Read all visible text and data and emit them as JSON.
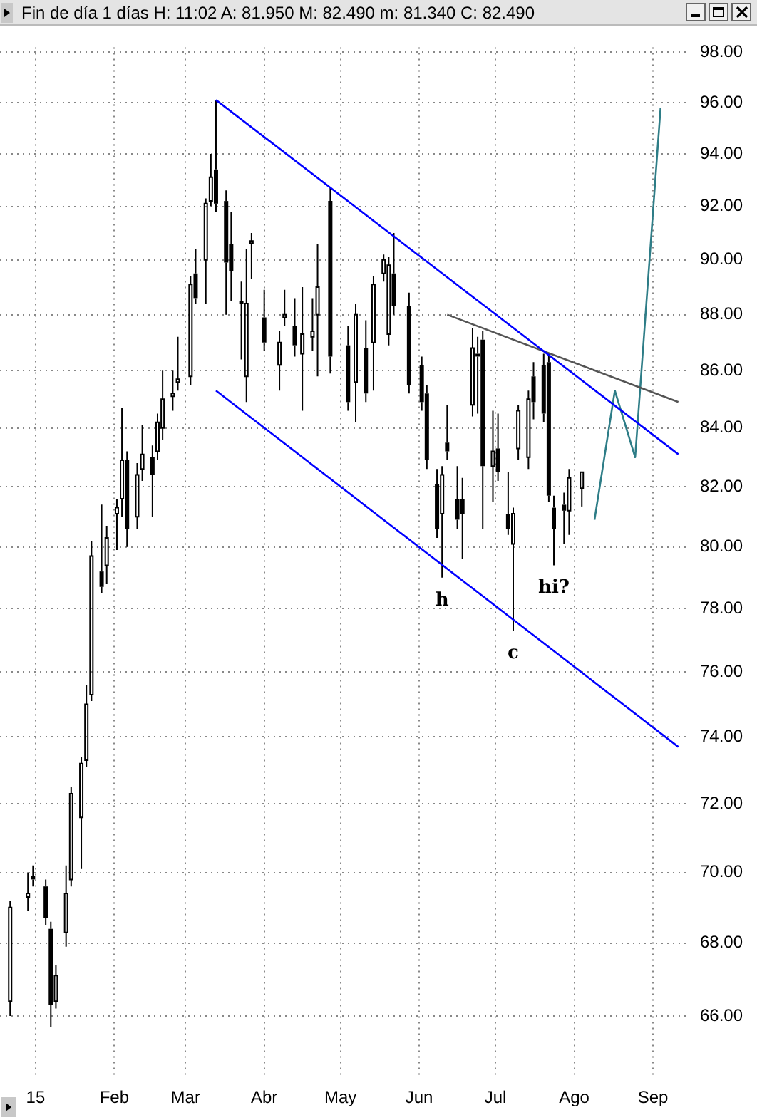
{
  "chart_data": {
    "type": "candlestick",
    "title": "Fin de día 1 días  H: 11:02  A: 81.950  M: 82.490  m: 81.340  C: 82.490",
    "color": "#000000",
    "x": [
      "2014-12-22",
      "2014-12-29",
      "2014-12-31",
      "2015-01-05",
      "2015-01-07",
      "2015-01-09",
      "2015-01-13",
      "2015-01-15",
      "2015-01-19",
      "2015-01-21",
      "2015-01-23",
      "2015-01-27",
      "2015-01-29",
      "2015-02-02",
      "2015-02-04",
      "2015-02-06",
      "2015-02-10",
      "2015-02-12",
      "2015-02-16",
      "2015-02-18",
      "2015-02-20",
      "2015-02-24",
      "2015-02-26",
      "2015-03-03",
      "2015-03-05",
      "2015-03-09",
      "2015-03-11",
      "2015-03-13",
      "2015-03-17",
      "2015-03-19",
      "2015-03-23",
      "2015-03-25",
      "2015-03-27",
      "2015-04-01",
      "2015-04-07",
      "2015-04-09",
      "2015-04-13",
      "2015-04-16",
      "2015-04-20",
      "2015-04-22",
      "2015-04-27",
      "2015-05-04",
      "2015-05-07",
      "2015-05-11",
      "2015-05-14",
      "2015-05-18",
      "2015-05-20",
      "2015-05-22",
      "2015-05-28",
      "2015-06-02",
      "2015-06-04",
      "2015-06-08",
      "2015-06-10",
      "2015-06-12",
      "2015-06-16",
      "2015-06-18",
      "2015-06-22",
      "2015-06-24",
      "2015-06-26",
      "2015-06-30",
      "2015-07-02",
      "2015-07-06",
      "2015-07-08",
      "2015-07-10",
      "2015-07-14",
      "2015-07-16",
      "2015-07-20",
      "2015-07-22",
      "2015-07-24",
      "2015-07-28",
      "2015-07-30",
      "2015-08-04"
    ],
    "ohlc": [
      [
        66.4,
        69.2,
        66.0,
        69.0
      ],
      [
        69.3,
        70.0,
        68.9,
        69.4
      ],
      [
        69.9,
        70.2,
        69.6,
        69.8
      ],
      [
        69.6,
        69.8,
        68.5,
        68.7
      ],
      [
        68.4,
        68.6,
        65.7,
        66.3
      ],
      [
        66.4,
        67.4,
        66.2,
        67.1
      ],
      [
        68.3,
        70.2,
        67.9,
        69.4
      ],
      [
        69.8,
        72.5,
        69.6,
        72.3
      ],
      [
        71.6,
        73.4,
        70.1,
        73.2
      ],
      [
        73.3,
        75.6,
        73.1,
        75.0
      ],
      [
        75.3,
        80.2,
        75.1,
        79.7
      ],
      [
        79.2,
        81.4,
        78.5,
        78.7
      ],
      [
        79.4,
        80.7,
        78.8,
        80.3
      ],
      [
        81.1,
        81.6,
        79.9,
        81.3
      ],
      [
        81.6,
        84.7,
        81.0,
        82.9
      ],
      [
        82.9,
        83.2,
        80.0,
        80.6
      ],
      [
        81.0,
        82.8,
        80.6,
        82.4
      ],
      [
        82.6,
        84.1,
        82.2,
        83.1
      ],
      [
        83.0,
        83.4,
        81.0,
        82.4
      ],
      [
        83.2,
        84.5,
        82.9,
        84.2
      ],
      [
        84.0,
        86.0,
        83.6,
        85.0
      ],
      [
        85.1,
        86.0,
        84.6,
        85.2
      ],
      [
        85.6,
        87.2,
        85.3,
        85.7
      ],
      [
        85.8,
        89.4,
        85.5,
        89.1
      ],
      [
        89.5,
        90.4,
        88.4,
        88.6
      ],
      [
        90.0,
        92.3,
        88.4,
        92.1
      ],
      [
        92.2,
        94.0,
        92.0,
        93.1
      ],
      [
        93.4,
        96.1,
        91.8,
        92.1
      ],
      [
        92.2,
        92.6,
        88.0,
        89.9
      ],
      [
        90.6,
        91.8,
        88.5,
        89.6
      ],
      [
        88.5,
        89.2,
        86.4,
        88.4
      ],
      [
        85.8,
        90.4,
        84.9,
        88.4
      ],
      [
        90.7,
        91.0,
        89.3,
        90.7
      ],
      [
        87.9,
        88.9,
        86.7,
        87.0
      ],
      [
        86.2,
        87.4,
        85.3,
        87.0
      ],
      [
        87.9,
        88.9,
        87.6,
        88.0
      ],
      [
        87.6,
        88.6,
        86.5,
        86.9
      ],
      [
        86.6,
        89.0,
        84.6,
        87.3
      ],
      [
        87.2,
        88.6,
        86.7,
        87.4
      ],
      [
        88.0,
        90.6,
        85.8,
        89.0
      ],
      [
        92.2,
        92.7,
        85.9,
        86.5
      ],
      [
        86.9,
        87.6,
        84.6,
        84.9
      ],
      [
        85.6,
        88.4,
        84.2,
        88.0
      ],
      [
        86.8,
        87.8,
        84.9,
        85.2
      ],
      [
        87.0,
        89.4,
        85.3,
        89.1
      ],
      [
        89.5,
        90.2,
        89.2,
        90.0
      ],
      [
        87.3,
        90.1,
        86.9,
        89.8
      ],
      [
        89.5,
        91.0,
        88.0,
        88.3
      ],
      [
        88.3,
        88.8,
        85.2,
        85.5
      ],
      [
        86.2,
        86.5,
        84.6,
        84.9
      ],
      [
        85.2,
        85.5,
        82.6,
        82.9
      ],
      [
        82.1,
        82.6,
        80.3,
        80.6
      ],
      [
        81.1,
        82.7,
        79.0,
        82.4
      ],
      [
        83.5,
        84.8,
        82.9,
        83.2
      ],
      [
        81.6,
        82.7,
        80.6,
        80.9
      ],
      [
        81.6,
        82.3,
        79.6,
        81.1
      ],
      [
        84.8,
        87.5,
        84.4,
        86.8
      ],
      [
        86.6,
        87.2,
        84.5,
        86.5
      ],
      [
        87.1,
        87.4,
        80.6,
        82.7
      ],
      [
        82.7,
        84.6,
        81.5,
        83.2
      ],
      [
        83.3,
        84.5,
        82.2,
        82.5
      ],
      [
        81.1,
        82.5,
        80.4,
        80.6
      ],
      [
        80.1,
        81.3,
        77.3,
        81.1
      ],
      [
        83.3,
        84.8,
        82.9,
        84.6
      ],
      [
        83.0,
        85.3,
        82.6,
        85.0
      ],
      [
        85.8,
        86.3,
        84.3,
        84.9
      ],
      [
        86.2,
        86.6,
        84.2,
        84.5
      ],
      [
        86.3,
        86.6,
        81.5,
        81.7
      ],
      [
        81.3,
        81.7,
        79.4,
        80.6
      ],
      [
        81.4,
        81.8,
        80.1,
        81.2
      ],
      [
        81.2,
        82.6,
        80.4,
        82.3
      ],
      [
        81.95,
        82.49,
        81.34,
        82.49
      ]
    ],
    "series": [
      {
        "type": "line",
        "color": "#0000ff",
        "x": [
          "2015-03-13",
          "2015-09-11"
        ],
        "values": [
          96.1,
          83.1
        ]
      },
      {
        "type": "line",
        "color": "#0000ff",
        "x": [
          "2015-03-13",
          "2015-09-11"
        ],
        "values": [
          85.3,
          73.7
        ]
      },
      {
        "type": "line",
        "color": "#555555",
        "x": [
          "2015-06-12",
          "2015-09-11"
        ],
        "values": [
          88.0,
          84.9
        ]
      },
      {
        "type": "line",
        "color": "#2e7d87",
        "x": [
          "2015-08-09",
          "2015-08-17",
          "2015-08-25",
          "2015-09-04"
        ],
        "values": [
          80.9,
          85.3,
          83.0,
          95.8
        ]
      }
    ],
    "xlim": [
      "2014-12-18",
      "2015-09-15"
    ],
    "xticks": [
      {
        "value": "2015-01-01",
        "label": "15"
      },
      {
        "value": "2015-02-01",
        "label": "Feb"
      },
      {
        "value": "2015-03-01",
        "label": "Mar"
      },
      {
        "value": "2015-04-01",
        "label": "Abr"
      },
      {
        "value": "2015-05-01",
        "label": "May"
      },
      {
        "value": "2015-06-01",
        "label": "Jun"
      },
      {
        "value": "2015-07-01",
        "label": "Jul"
      },
      {
        "value": "2015-08-01",
        "label": "Ago"
      },
      {
        "value": "2015-09-01",
        "label": "Sep"
      }
    ],
    "ylim": [
      64.3,
      98.2
    ],
    "yticks": [
      {
        "value": 66,
        "label": "66.00"
      },
      {
        "value": 68,
        "label": "68.00"
      },
      {
        "value": 70,
        "label": "70.00"
      },
      {
        "value": 72,
        "label": "72.00"
      },
      {
        "value": 74,
        "label": "74.00"
      },
      {
        "value": 76,
        "label": "76.00"
      },
      {
        "value": 78,
        "label": "78.00"
      },
      {
        "value": 80,
        "label": "80.00"
      },
      {
        "value": 82,
        "label": "82.00"
      },
      {
        "value": 84,
        "label": "84.00"
      },
      {
        "value": 86,
        "label": "86.00"
      },
      {
        "value": 88,
        "label": "88.00"
      },
      {
        "value": 90,
        "label": "90.00"
      },
      {
        "value": 92,
        "label": "92.00"
      },
      {
        "value": 94,
        "label": "94.00"
      },
      {
        "value": 96,
        "label": "96.00"
      },
      {
        "value": 98,
        "label": "98.00"
      }
    ],
    "log": "y",
    "grid": true,
    "annotations": [
      {
        "text": "h",
        "x": "2015-06-10",
        "y": 79.0
      },
      {
        "text": "c",
        "x": "2015-07-08",
        "y": 77.3
      },
      {
        "text": "hi?",
        "x": "2015-07-24",
        "y": 79.4
      }
    ]
  }
}
